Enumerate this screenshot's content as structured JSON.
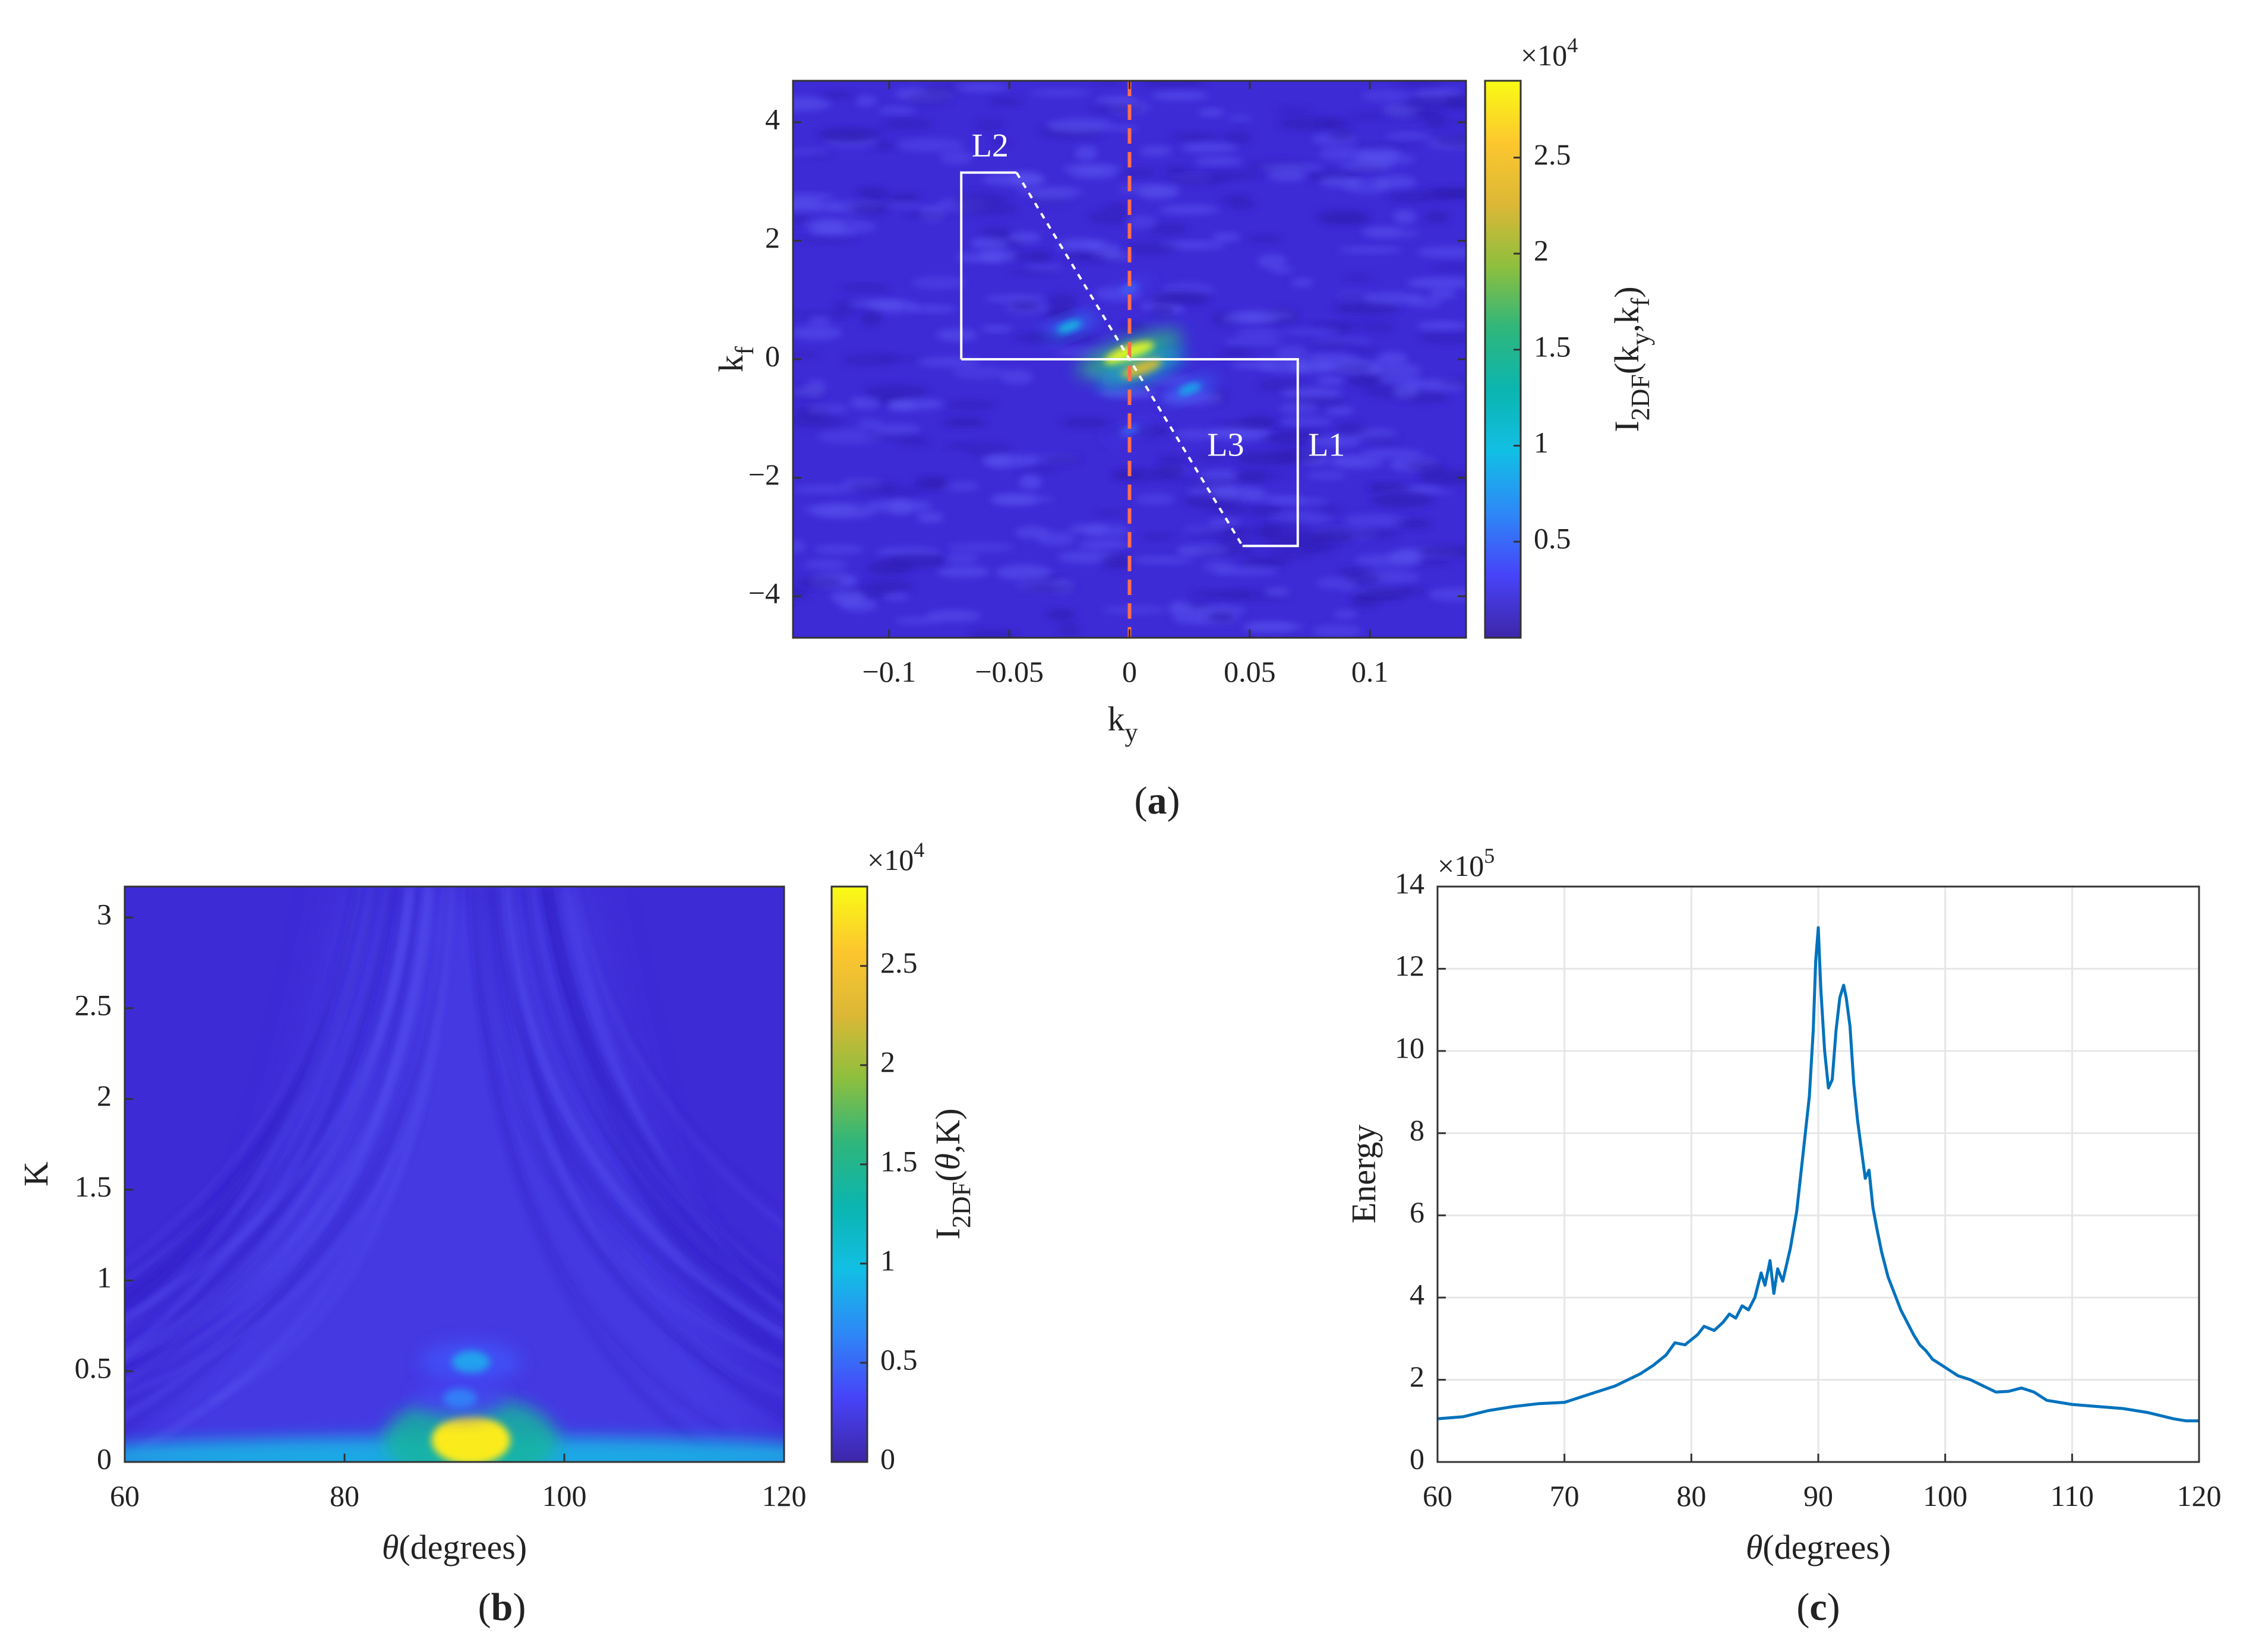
{
  "colors": {
    "background_field": "#3d2bd6",
    "peak": "#fde725",
    "line": "#0072bd",
    "guide": "#ffffff",
    "center_line": "#ff6e4a",
    "grid": "#e6e6e6"
  },
  "colormap": [
    "#3e26a8",
    "#4743f8",
    "#2e87f7",
    "#12bfe5",
    "#0bb5b0",
    "#2fb67b",
    "#8ebf3e",
    "#dcb836",
    "#fcc72e",
    "#f9fb15"
  ],
  "chart_data": [
    {
      "panel": "a",
      "type": "heatmap",
      "caption": "(a)",
      "caption_open": "(",
      "caption_letter": "a",
      "caption_close": ")",
      "xlabel": "k",
      "xlabel_sub": "y",
      "ylabel": "k",
      "ylabel_sub": "f",
      "xlim": [
        -0.14,
        0.14
      ],
      "ylim": [
        -4.7,
        4.7
      ],
      "xticks": [
        -0.1,
        -0.05,
        0,
        0.05,
        0.1
      ],
      "xtick_labels": [
        "−0.1",
        "−0.05",
        "0",
        "0.05",
        "0.1"
      ],
      "yticks": [
        -4,
        -2,
        0,
        2,
        4
      ],
      "ytick_labels": [
        "−4",
        "−2",
        "0",
        "2",
        "4"
      ],
      "colorbar": {
        "label": "I",
        "label_sub": "2DF",
        "label_arg": "(k",
        "label_arg_sub1": "y",
        "label_arg_mid": ",k",
        "label_arg_sub2": "f",
        "label_arg_end": ")",
        "range": [
          0,
          2.9
        ],
        "ticks": [
          0.5,
          1,
          1.5,
          2,
          2.5
        ],
        "tick_labels": [
          "0.5",
          "1",
          "1.5",
          "2",
          "2.5"
        ],
        "exponent_base": "×10",
        "exponent": "4"
      },
      "annotations": [
        {
          "text": "L1",
          "x": 0.082,
          "y": -1.5
        },
        {
          "text": "L2",
          "x": -0.058,
          "y": 3.55
        },
        {
          "text": "L3",
          "x": 0.04,
          "y": -1.5
        }
      ],
      "guide_lines": {
        "L1_path": [
          [
            -0.07,
            0
          ],
          [
            0.07,
            0
          ],
          [
            0.07,
            -3.15
          ],
          [
            0.047,
            -3.15
          ]
        ],
        "L2_path": [
          [
            -0.07,
            0
          ],
          [
            -0.07,
            3.15
          ],
          [
            -0.047,
            3.15
          ]
        ],
        "L3_dashed": [
          [
            -0.047,
            3.15
          ],
          [
            0.047,
            -3.15
          ]
        ],
        "center_dashed_x": 0
      },
      "hotspots": [
        {
          "x": 0.0,
          "y": 0.1,
          "value": 2.9
        },
        {
          "x": 0.005,
          "y": -0.15,
          "value": 2.2
        },
        {
          "x": -0.025,
          "y": 0.55,
          "value": 1.0
        },
        {
          "x": 0.025,
          "y": -0.5,
          "value": 0.9
        },
        {
          "x": 0.0,
          "y": 1.2,
          "value": 0.5
        },
        {
          "x": 0.0,
          "y": -1.2,
          "value": 0.5
        }
      ]
    },
    {
      "panel": "b",
      "type": "heatmap",
      "caption": "(b)",
      "caption_open": "(",
      "caption_letter": "b",
      "caption_close": ")",
      "xlabel": "θ",
      "xlabel_rest": "(degrees)",
      "ylabel": "K",
      "xlim": [
        60,
        120
      ],
      "ylim": [
        0,
        3.17
      ],
      "xticks": [
        60,
        80,
        100,
        120
      ],
      "xtick_labels": [
        "60",
        "80",
        "100",
        "120"
      ],
      "yticks": [
        0,
        0.5,
        1,
        1.5,
        2,
        2.5,
        3
      ],
      "ytick_labels": [
        "0",
        "0.5",
        "1",
        "1.5",
        "2",
        "2.5",
        "3"
      ],
      "colorbar": {
        "label": "I",
        "label_sub": "2DF",
        "label_arg_open": "(",
        "label_arg_theta": "θ",
        "label_arg_end": ",K)",
        "range": [
          0,
          2.9
        ],
        "ticks": [
          0,
          0.5,
          1,
          1.5,
          2,
          2.5
        ],
        "tick_labels": [
          "0",
          "0.5",
          "1",
          "1.5",
          "2",
          "2.5"
        ],
        "exponent_base": "×10",
        "exponent": "4"
      },
      "hotspots": [
        {
          "theta": 91.5,
          "K": 0.12,
          "value": 2.8
        },
        {
          "theta": 91.5,
          "K": 0.55,
          "value": 0.8
        },
        {
          "theta": 90.5,
          "K": 0.35,
          "value": 0.6
        }
      ]
    },
    {
      "panel": "c",
      "type": "line",
      "caption": "(c)",
      "caption_open": "(",
      "caption_letter": "c",
      "caption_close": ")",
      "xlabel": "θ",
      "xlabel_rest": "(degrees)",
      "ylabel": "Energy",
      "xlim": [
        60,
        120
      ],
      "ylim": [
        0,
        14
      ],
      "grid": true,
      "xticks": [
        60,
        70,
        80,
        90,
        100,
        110,
        120
      ],
      "xtick_labels": [
        "60",
        "70",
        "80",
        "90",
        "100",
        "110",
        "120"
      ],
      "yticks": [
        0,
        2,
        4,
        6,
        8,
        10,
        12,
        14
      ],
      "ytick_labels": [
        "0",
        "2",
        "4",
        "6",
        "8",
        "10",
        "12",
        "14"
      ],
      "exponent_base": "×10",
      "exponent": "5",
      "series": [
        {
          "name": "Energy",
          "x": [
            60,
            62,
            64,
            66,
            68,
            70,
            72,
            74,
            75,
            76,
            77,
            78,
            78.7,
            79.5,
            80.5,
            81,
            81.8,
            82.5,
            83,
            83.5,
            84,
            84.5,
            85,
            85.5,
            85.8,
            86.2,
            86.5,
            86.8,
            87.2,
            87.8,
            88.3,
            88.8,
            89.3,
            89.6,
            89.8,
            90,
            90.2,
            90.5,
            90.8,
            91.1,
            91.4,
            91.7,
            92,
            92.2,
            92.5,
            92.8,
            93.1,
            93.4,
            93.7,
            94,
            94.3,
            94.6,
            95,
            95.5,
            96,
            96.5,
            97,
            97.5,
            98,
            98.5,
            99,
            99.5,
            100,
            101,
            102,
            103,
            104,
            105,
            106,
            107,
            108,
            110,
            112,
            114,
            116,
            118,
            119,
            120
          ],
          "y": [
            1.05,
            1.1,
            1.25,
            1.35,
            1.42,
            1.45,
            1.65,
            1.85,
            2.0,
            2.15,
            2.35,
            2.6,
            2.9,
            2.85,
            3.1,
            3.3,
            3.2,
            3.4,
            3.6,
            3.5,
            3.8,
            3.7,
            4.0,
            4.6,
            4.3,
            4.9,
            4.1,
            4.7,
            4.4,
            5.2,
            6.1,
            7.5,
            8.9,
            10.5,
            12.2,
            13.0,
            11.5,
            10.0,
            9.1,
            9.3,
            10.5,
            11.3,
            11.6,
            11.3,
            10.6,
            9.2,
            8.3,
            7.6,
            6.9,
            7.1,
            6.2,
            5.7,
            5.1,
            4.5,
            4.1,
            3.7,
            3.4,
            3.1,
            2.85,
            2.7,
            2.5,
            2.4,
            2.3,
            2.1,
            2.0,
            1.85,
            1.7,
            1.72,
            1.8,
            1.7,
            1.5,
            1.4,
            1.35,
            1.3,
            1.2,
            1.05,
            1.0,
            1.0
          ]
        }
      ]
    }
  ]
}
